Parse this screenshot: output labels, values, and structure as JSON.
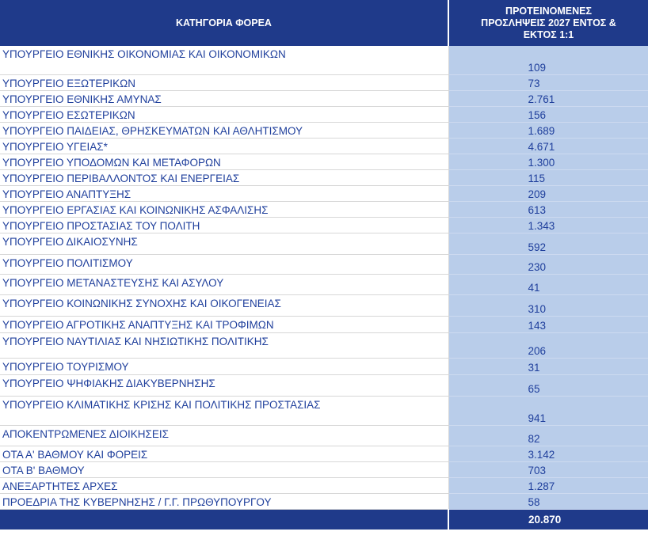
{
  "header": {
    "category": "ΚΑΤΗΓΟΡΙΑ ΦΟΡΕΑ",
    "forecast_line1": "ΠΡΟΤΕΙΝΟΜΕΝΕΣ",
    "forecast_line2": "ΠΡΟΣΛΗΨΕΙΣ 2027 ΕΝΤΟΣ &",
    "forecast_line3": "ΕΚΤΟΣ 1:1"
  },
  "rows": [
    {
      "name": "ΥΠΟΥΡΓΕΙΟ ΕΘΝΙΚΗΣ ΟΙΚΟΝΟΜΙΑΣ ΚΑΙ ΟΙΚΟΝΟΜΙΚΩΝ",
      "value": "109"
    },
    {
      "name": "ΥΠΟΥΡΓΕΙΟ ΕΞΩΤΕΡΙΚΩΝ",
      "value": "73"
    },
    {
      "name": "ΥΠΟΥΡΓΕΙΟ ΕΘΝΙΚΗΣ ΑΜΥΝΑΣ",
      "value": "2.761"
    },
    {
      "name": "ΥΠΟΥΡΓΕΙΟ ΕΣΩΤΕΡΙΚΩΝ",
      "value": "156"
    },
    {
      "name": "ΥΠΟΥΡΓΕΙΟ ΠΑΙΔΕΙΑΣ, ΘΡΗΣΚΕΥΜΑΤΩΝ ΚΑΙ ΑΘΛΗΤΙΣΜΟΥ",
      "value": "1.689"
    },
    {
      "name": "ΥΠΟΥΡΓΕΙΟ ΥΓΕΙΑΣ*",
      "value": "4.671"
    },
    {
      "name": "ΥΠΟΥΡΓΕΙΟ ΥΠΟΔΟΜΩΝ ΚΑΙ ΜΕΤΑΦΟΡΩΝ",
      "value": "1.300"
    },
    {
      "name": "ΥΠΟΥΡΓΕΙΟ ΠΕΡΙΒΑΛΛΟΝΤΟΣ ΚΑΙ ΕΝΕΡΓΕΙΑΣ",
      "value": "115"
    },
    {
      "name": "ΥΠΟΥΡΓΕΙΟ ΑΝΑΠΤΥΞΗΣ",
      "value": "209"
    },
    {
      "name": "ΥΠΟΥΡΓΕΙΟ ΕΡΓΑΣΙΑΣ ΚΑΙ ΚΟΙΝΩΝΙΚΗΣ ΑΣΦΑΛΙΣΗΣ",
      "value": "613"
    },
    {
      "name": "ΥΠΟΥΡΓΕΙΟ ΠΡΟΣΤΑΣΙΑΣ ΤΟΥ ΠΟΛΙΤΗ",
      "value": "1.343"
    },
    {
      "name": "ΥΠΟΥΡΓΕΙΟ ΔΙΚΑΙΟΣΥΝΗΣ",
      "value": "592"
    },
    {
      "name": "ΥΠΟΥΡΓΕΙΟ ΠΟΛΙΤΙΣΜΟΥ",
      "value": "230"
    },
    {
      "name": "ΥΠΟΥΡΓΕΙΟ ΜΕΤΑΝΑΣΤΕΥΣΗΣ ΚΑΙ ΑΣΥΛΟΥ",
      "value": "41"
    },
    {
      "name": "ΥΠΟΥΡΓΕΙΟ ΚΟΙΝΩΝΙΚΗΣ ΣΥΝΟΧΗΣ ΚΑΙ ΟΙΚΟΓΕΝΕΙΑΣ",
      "value": "310"
    },
    {
      "name": "ΥΠΟΥΡΓΕΙΟ ΑΓΡΟΤΙΚΗΣ ΑΝΑΠΤΥΞΗΣ ΚΑΙ ΤΡΟΦΙΜΩΝ",
      "value": "143"
    },
    {
      "name": "ΥΠΟΥΡΓΕΙΟ ΝΑΥΤΙΛΙΑΣ ΚΑΙ ΝΗΣΙΩΤΙΚΗΣ ΠΟΛΙΤΙΚΗΣ",
      "value": "206"
    },
    {
      "name": "ΥΠΟΥΡΓΕΙΟ ΤΟΥΡΙΣΜΟΥ",
      "value": "31"
    },
    {
      "name": "ΥΠΟΥΡΓΕΙΟ ΨΗΦΙΑΚΗΣ ΔΙΑΚΥΒΕΡΝΗΣΗΣ",
      "value": "65"
    },
    {
      "name": "ΥΠΟΥΡΓΕΙΟ ΚΛΙΜΑΤΙΚΗΣ ΚΡΙΣΗΣ ΚΑΙ ΠΟΛΙΤΙΚΗΣ ΠΡΟΣΤΑΣΙΑΣ",
      "value": "941"
    },
    {
      "name": "ΑΠΟΚΕΝΤΡΩΜΕΝΕΣ ΔΙΟΙΚΗΣΕΙΣ",
      "value": "82"
    },
    {
      "name": "ΟΤΑ Α' ΒΑΘΜΟΥ ΚΑΙ ΦΟΡΕΙΣ",
      "value": "3.142"
    },
    {
      "name": "ΟΤΑ Β' ΒΑΘΜΟΥ",
      "value": "703"
    },
    {
      "name": "ΑΝΕΞΑΡΤΗΤΕΣ ΑΡΧΕΣ",
      "value": "1.287"
    },
    {
      "name": "ΠΡΟΕΔΡΙΑ ΤΗΣ ΚΥΒΕΡΝΗΣΗΣ / Γ.Γ. ΠΡΩΘΥΠΟΥΡΓΟΥ",
      "value": "58"
    }
  ],
  "total": {
    "label": "",
    "value": "20.870"
  }
}
